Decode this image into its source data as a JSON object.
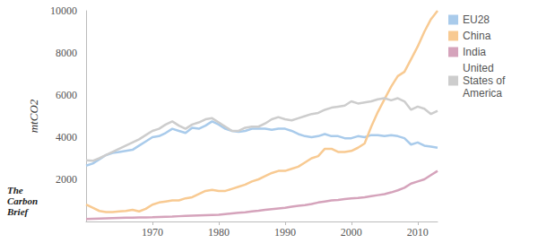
{
  "chart_data": {
    "type": "line",
    "y_label": "mtCO2",
    "annotations": [
      "The Carbon Brief"
    ],
    "x": [
      1960,
      1961,
      1962,
      1963,
      1964,
      1965,
      1966,
      1967,
      1968,
      1969,
      1970,
      1971,
      1972,
      1973,
      1974,
      1975,
      1976,
      1977,
      1978,
      1979,
      1980,
      1981,
      1982,
      1983,
      1984,
      1985,
      1986,
      1987,
      1988,
      1989,
      1990,
      1991,
      1992,
      1993,
      1994,
      1995,
      1996,
      1997,
      1998,
      1999,
      2000,
      2001,
      2002,
      2003,
      2004,
      2005,
      2006,
      2007,
      2008,
      2009,
      2010,
      2011,
      2012,
      2013
    ],
    "series": [
      {
        "name": "EU28",
        "color": "#a9cbeb",
        "values": [
          2650,
          2750,
          2950,
          3150,
          3250,
          3300,
          3350,
          3400,
          3600,
          3800,
          4000,
          4050,
          4200,
          4400,
          4300,
          4200,
          4450,
          4400,
          4550,
          4750,
          4600,
          4400,
          4300,
          4250,
          4300,
          4400,
          4400,
          4400,
          4350,
          4400,
          4400,
          4300,
          4150,
          4050,
          4000,
          4050,
          4150,
          4050,
          4050,
          3950,
          3950,
          4050,
          4000,
          4100,
          4100,
          4050,
          4100,
          4050,
          3950,
          3650,
          3750,
          3600,
          3550,
          3500
        ]
      },
      {
        "name": "China",
        "color": "#f8ca92",
        "values": [
          800,
          650,
          500,
          450,
          450,
          480,
          500,
          550,
          480,
          600,
          800,
          900,
          950,
          1000,
          1000,
          1100,
          1150,
          1300,
          1450,
          1500,
          1450,
          1450,
          1550,
          1650,
          1750,
          1900,
          2000,
          2150,
          2300,
          2400,
          2400,
          2500,
          2600,
          2800,
          3000,
          3100,
          3450,
          3450,
          3300,
          3300,
          3350,
          3500,
          3700,
          4500,
          5200,
          5800,
          6400,
          6900,
          7100,
          7700,
          8300,
          9000,
          9600,
          10000
        ]
      },
      {
        "name": "India",
        "color": "#d5a3bb",
        "values": [
          120,
          130,
          140,
          150,
          160,
          170,
          180,
          185,
          190,
          195,
          200,
          210,
          220,
          230,
          250,
          270,
          280,
          290,
          300,
          310,
          320,
          350,
          380,
          410,
          440,
          480,
          510,
          550,
          590,
          620,
          650,
          700,
          740,
          780,
          830,
          900,
          950,
          1000,
          1020,
          1060,
          1100,
          1120,
          1150,
          1200,
          1250,
          1300,
          1380,
          1480,
          1600,
          1800,
          1900,
          2000,
          2200,
          2400
        ]
      },
      {
        "name": "United States of America",
        "color": "#cdcdcd",
        "values": [
          2900,
          2880,
          3000,
          3150,
          3300,
          3450,
          3600,
          3750,
          3900,
          4100,
          4300,
          4400,
          4600,
          4750,
          4550,
          4400,
          4600,
          4700,
          4850,
          4900,
          4700,
          4500,
          4300,
          4300,
          4450,
          4500,
          4500,
          4650,
          4850,
          4950,
          4850,
          4800,
          4900,
          5000,
          5100,
          5150,
          5300,
          5400,
          5450,
          5500,
          5700,
          5600,
          5650,
          5700,
          5800,
          5850,
          5750,
          5850,
          5700,
          5300,
          5450,
          5350,
          5100,
          5250
        ]
      }
    ],
    "xlim": [
      1960,
      2013
    ],
    "xticks": [
      1970,
      1980,
      1990,
      2000,
      2010
    ],
    "ylim": [
      0,
      10000
    ],
    "yticks": [
      2000,
      4000,
      6000,
      8000,
      10000
    ],
    "grid": false,
    "legend": "right"
  }
}
